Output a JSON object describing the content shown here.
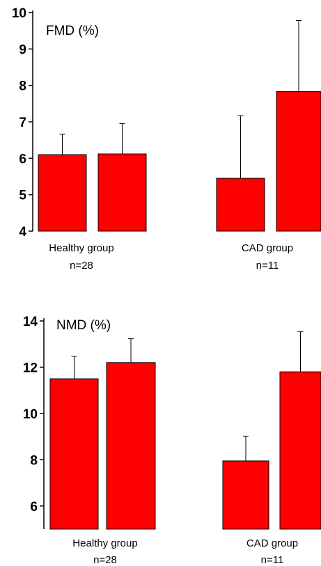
{
  "chart_data": [
    {
      "type": "bar",
      "title": "FMD (%)",
      "ylim": [
        4,
        10
      ],
      "yticks": [
        "4",
        "5",
        "6",
        "7",
        "8",
        "9",
        "10"
      ],
      "groups": [
        {
          "name": "Healthy group",
          "n": "n=28"
        },
        {
          "name": "CAD group",
          "n": "n=11"
        }
      ],
      "values": [
        6.1,
        6.12,
        5.45,
        7.83
      ],
      "errors": [
        0.56,
        0.83,
        1.72,
        1.95
      ],
      "bar_color": "#ff0000",
      "grid": false
    },
    {
      "type": "bar",
      "title": "NMD (%)",
      "ylim": [
        5,
        14
      ],
      "yticks": [
        "6",
        "8",
        "10",
        "12",
        "14"
      ],
      "groups": [
        {
          "name": "Healthy group",
          "n": "n=28"
        },
        {
          "name": "CAD group",
          "n": "n=11"
        }
      ],
      "values": [
        11.5,
        12.2,
        7.95,
        11.8
      ],
      "errors": [
        0.97,
        1.03,
        1.07,
        1.73
      ],
      "bar_color": "#ff0000",
      "grid": false
    }
  ]
}
